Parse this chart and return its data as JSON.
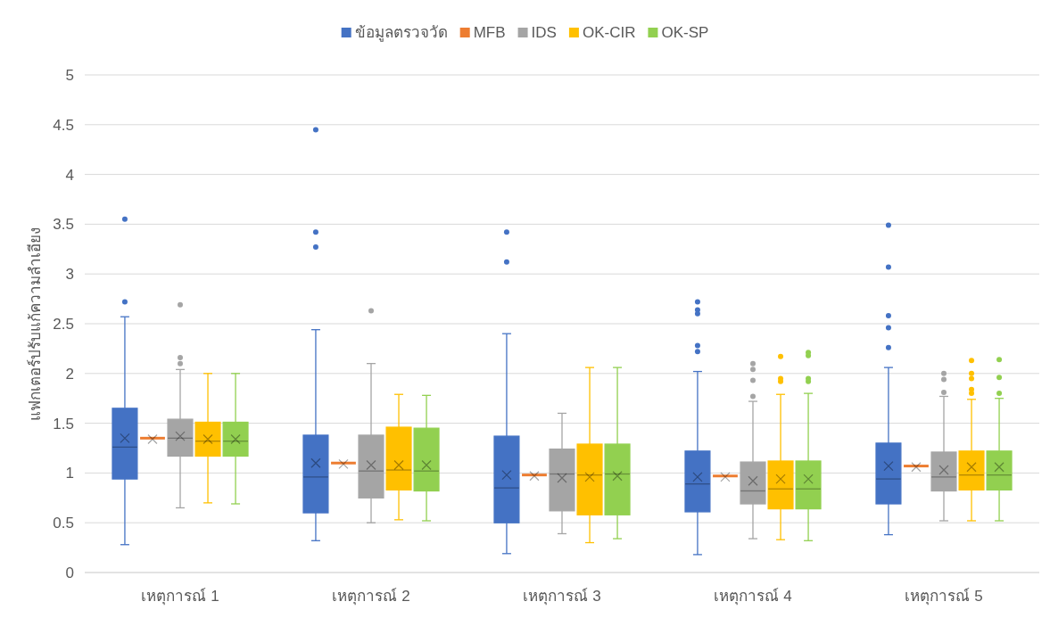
{
  "chart_data": {
    "type": "box",
    "ylabel": "แฟกเตอร์ปรับแก้ความลำเอียง",
    "categories": [
      "เหตุการณ์ 1",
      "เหตุการณ์ 2",
      "เหตุการณ์ 3",
      "เหตุการณ์ 4",
      "เหตุการณ์ 5"
    ],
    "ylim": [
      0,
      5
    ],
    "yticks": [
      0,
      0.5,
      1,
      1.5,
      2,
      2.5,
      3,
      3.5,
      4,
      4.5,
      5
    ],
    "grid": "y",
    "legend": "top",
    "series": [
      {
        "name": "ข้อมูลตรวจวัด",
        "color": "#4472c4",
        "boxes": [
          {
            "low": 0.28,
            "q1": 0.94,
            "median": 1.26,
            "q3": 1.65,
            "high": 2.57,
            "mean": 1.35,
            "outliers": [
              2.72,
              3.55
            ]
          },
          {
            "low": 0.32,
            "q1": 0.6,
            "median": 0.96,
            "q3": 1.38,
            "high": 2.44,
            "mean": 1.1,
            "outliers": [
              3.27,
              3.42,
              4.45
            ]
          },
          {
            "low": 0.19,
            "q1": 0.5,
            "median": 0.85,
            "q3": 1.37,
            "high": 2.4,
            "mean": 0.98,
            "outliers": [
              3.12,
              3.42
            ]
          },
          {
            "low": 0.18,
            "q1": 0.61,
            "median": 0.89,
            "q3": 1.22,
            "high": 2.02,
            "mean": 0.96,
            "outliers": [
              2.22,
              2.28,
              2.6,
              2.64,
              2.72
            ]
          },
          {
            "low": 0.38,
            "q1": 0.69,
            "median": 0.94,
            "q3": 1.3,
            "high": 2.06,
            "mean": 1.07,
            "outliers": [
              2.26,
              2.46,
              2.58,
              3.07,
              3.49
            ]
          }
        ]
      },
      {
        "name": "MFB",
        "color": "#ed7d31",
        "boxes": [
          {
            "low": 1.35,
            "q1": 1.35,
            "median": 1.35,
            "q3": 1.35,
            "high": 1.35,
            "mean": 1.34
          },
          {
            "low": 1.1,
            "q1": 1.1,
            "median": 1.1,
            "q3": 1.1,
            "high": 1.1,
            "mean": 1.09
          },
          {
            "low": 0.98,
            "q1": 0.98,
            "median": 0.98,
            "q3": 0.98,
            "high": 0.98,
            "mean": 0.97
          },
          {
            "low": 0.97,
            "q1": 0.97,
            "median": 0.97,
            "q3": 0.97,
            "high": 0.97,
            "mean": 0.96
          },
          {
            "low": 1.07,
            "q1": 1.07,
            "median": 1.07,
            "q3": 1.07,
            "high": 1.07,
            "mean": 1.06
          }
        ]
      },
      {
        "name": "IDS",
        "color": "#a5a5a5",
        "boxes": [
          {
            "low": 0.65,
            "q1": 1.17,
            "median": 1.35,
            "q3": 1.54,
            "high": 2.04,
            "mean": 1.37,
            "outliers": [
              2.1,
              2.16,
              2.69
            ]
          },
          {
            "low": 0.5,
            "q1": 0.75,
            "median": 1.02,
            "q3": 1.38,
            "high": 2.1,
            "mean": 1.08,
            "outliers": [
              2.63
            ]
          },
          {
            "low": 0.39,
            "q1": 0.62,
            "median": 0.99,
            "q3": 1.24,
            "high": 1.6,
            "mean": 0.95
          },
          {
            "low": 0.34,
            "q1": 0.69,
            "median": 0.82,
            "q3": 1.11,
            "high": 1.72,
            "mean": 0.92,
            "outliers": [
              1.77,
              1.93,
              2.04,
              2.1
            ]
          },
          {
            "low": 0.52,
            "q1": 0.82,
            "median": 0.96,
            "q3": 1.21,
            "high": 1.77,
            "mean": 1.03,
            "outliers": [
              1.81,
              1.94,
              2.0
            ]
          }
        ]
      },
      {
        "name": "OK-CIR",
        "color": "#ffc000",
        "boxes": [
          {
            "low": 0.7,
            "q1": 1.17,
            "median": 1.32,
            "q3": 1.51,
            "high": 2.0,
            "mean": 1.34
          },
          {
            "low": 0.53,
            "q1": 0.83,
            "median": 1.03,
            "q3": 1.46,
            "high": 1.79,
            "mean": 1.08
          },
          {
            "low": 0.3,
            "q1": 0.58,
            "median": 0.98,
            "q3": 1.29,
            "high": 2.06,
            "mean": 0.96
          },
          {
            "low": 0.33,
            "q1": 0.64,
            "median": 0.84,
            "q3": 1.12,
            "high": 1.79,
            "mean": 0.94,
            "outliers": [
              1.92,
              1.95,
              2.17
            ]
          },
          {
            "low": 0.52,
            "q1": 0.83,
            "median": 0.98,
            "q3": 1.22,
            "high": 1.74,
            "mean": 1.06,
            "outliers": [
              1.8,
              1.84,
              1.95,
              2.0,
              2.13
            ]
          }
        ]
      },
      {
        "name": "OK-SP",
        "color": "#92d050",
        "boxes": [
          {
            "low": 0.69,
            "q1": 1.17,
            "median": 1.32,
            "q3": 1.51,
            "high": 2.0,
            "mean": 1.34
          },
          {
            "low": 0.52,
            "q1": 0.82,
            "median": 1.02,
            "q3": 1.45,
            "high": 1.78,
            "mean": 1.08
          },
          {
            "low": 0.34,
            "q1": 0.58,
            "median": 0.99,
            "q3": 1.29,
            "high": 2.06,
            "mean": 0.97
          },
          {
            "low": 0.32,
            "q1": 0.64,
            "median": 0.84,
            "q3": 1.12,
            "high": 1.8,
            "mean": 0.94,
            "outliers": [
              1.92,
              1.95,
              2.18,
              2.21
            ]
          },
          {
            "low": 0.52,
            "q1": 0.83,
            "median": 0.98,
            "q3": 1.22,
            "high": 1.75,
            "mean": 1.06,
            "outliers": [
              1.8,
              1.96,
              2.14
            ]
          }
        ]
      }
    ]
  }
}
